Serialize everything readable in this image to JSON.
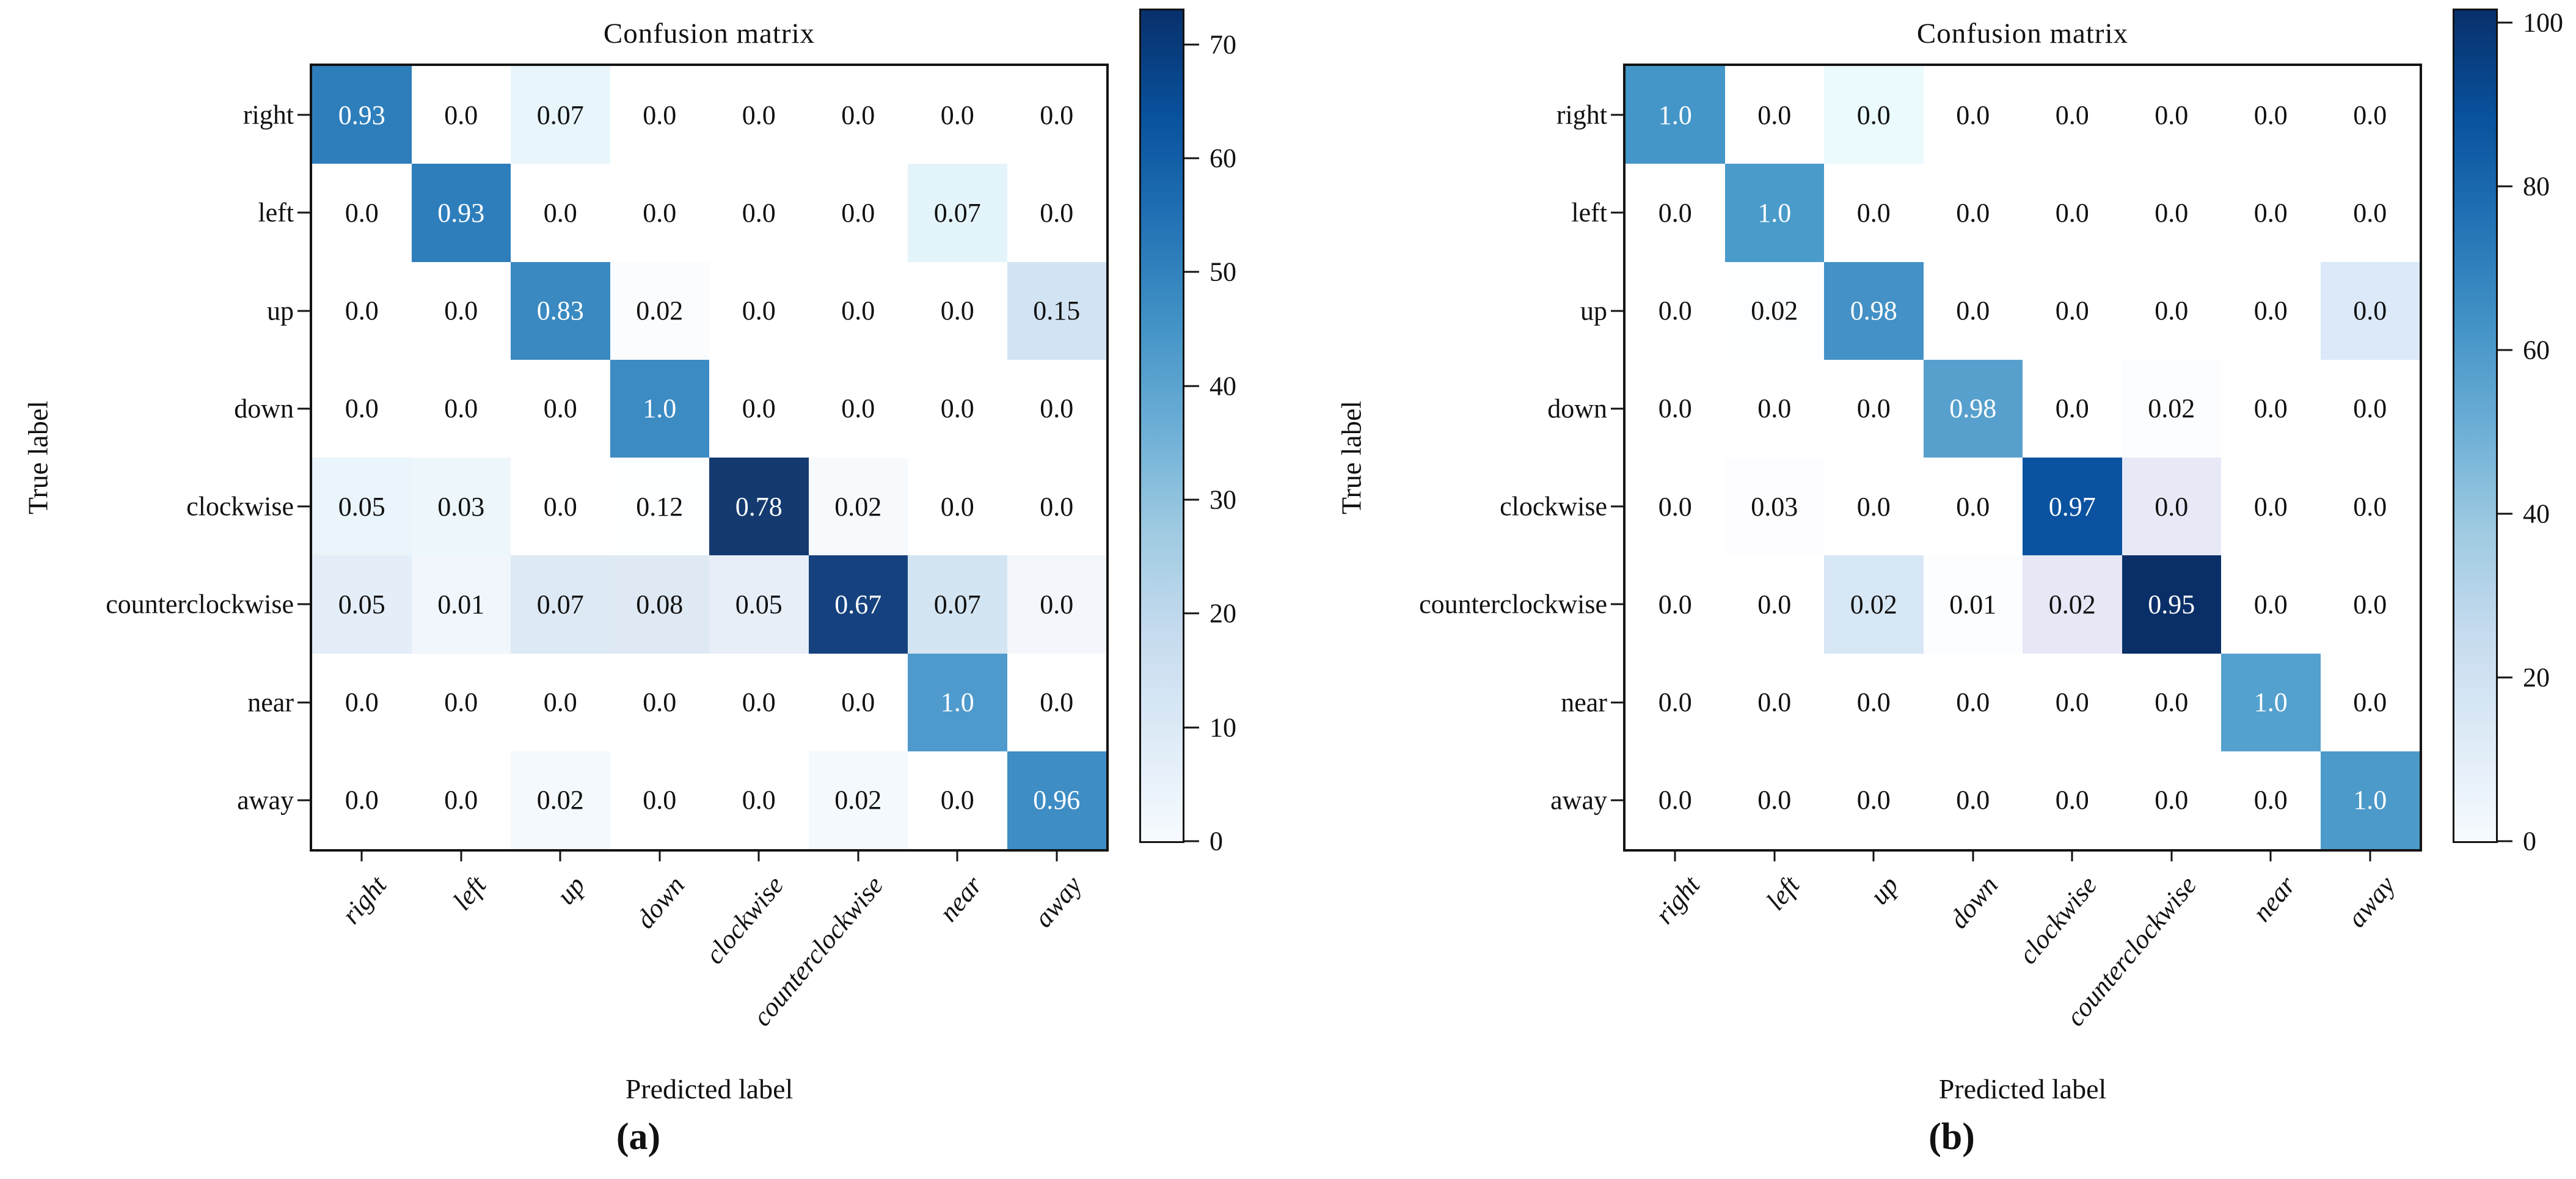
{
  "figure": {
    "background": "#ffffff"
  },
  "chart_data": [
    {
      "type": "heatmap",
      "panel_caption": "(a)",
      "title": "Confusion matrix",
      "xlabel": "Predicted label",
      "ylabel": "True label",
      "colormap": "Blues",
      "grid": false,
      "legend_position": "right-colorbar",
      "categories": [
        "right",
        "left",
        "up",
        "down",
        "clockwise",
        "counterclockwise",
        "near",
        "away"
      ],
      "matrix": [
        [
          0.93,
          0.0,
          0.07,
          0.0,
          0.0,
          0.0,
          0.0,
          0.0
        ],
        [
          0.0,
          0.93,
          0.0,
          0.0,
          0.0,
          0.0,
          0.07,
          0.0
        ],
        [
          0.0,
          0.0,
          0.83,
          0.02,
          0.0,
          0.0,
          0.0,
          0.15
        ],
        [
          0.0,
          0.0,
          0.0,
          1.0,
          0.0,
          0.0,
          0.0,
          0.0
        ],
        [
          0.05,
          0.03,
          0.0,
          0.12,
          0.78,
          0.02,
          0.0,
          0.0
        ],
        [
          0.05,
          0.01,
          0.07,
          0.08,
          0.05,
          0.67,
          0.07,
          0.0
        ],
        [
          0.0,
          0.0,
          0.0,
          0.0,
          0.0,
          0.0,
          1.0,
          0.0
        ],
        [
          0.0,
          0.0,
          0.02,
          0.0,
          0.0,
          0.02,
          0.0,
          0.96
        ]
      ],
      "cell_labels": [
        [
          "0.93",
          "0.0",
          "0.07",
          "0.0",
          "0.0",
          "0.0",
          "0.0",
          "0.0"
        ],
        [
          "0.0",
          "0.93",
          "0.0",
          "0.0",
          "0.0",
          "0.0",
          "0.07",
          "0.0"
        ],
        [
          "0.0",
          "0.0",
          "0.83",
          "0.02",
          "0.0",
          "0.0",
          "0.0",
          "0.15"
        ],
        [
          "0.0",
          "0.0",
          "0.0",
          "1.0",
          "0.0",
          "0.0",
          "0.0",
          "0.0"
        ],
        [
          "0.05",
          "0.03",
          "0.0",
          "0.12",
          "0.78",
          "0.02",
          "0.0",
          "0.0"
        ],
        [
          "0.05",
          "0.01",
          "0.07",
          "0.08",
          "0.05",
          "0.67",
          "0.07",
          "0.0"
        ],
        [
          "0.0",
          "0.0",
          "0.0",
          "0.0",
          "0.0",
          "0.0",
          "1.0",
          "0.0"
        ],
        [
          "0.0",
          "0.0",
          "0.02",
          "0.0",
          "0.0",
          "0.02",
          "0.0",
          "0.96"
        ]
      ],
      "cell_colors": [
        [
          "#2e7ebc",
          "#ffffff",
          "#e8f6fb",
          "#ffffff",
          "#ffffff",
          "#ffffff",
          "#ffffff",
          "#ffffff"
        ],
        [
          "#ffffff",
          "#2e7ebc",
          "#ffffff",
          "#ffffff",
          "#ffffff",
          "#ffffff",
          "#e4f4fb",
          "#ffffff"
        ],
        [
          "#ffffff",
          "#ffffff",
          "#3a89c1",
          "#fafcfe",
          "#ffffff",
          "#ffffff",
          "#ffffff",
          "#d2e4f3"
        ],
        [
          "#ffffff",
          "#ffffff",
          "#ffffff",
          "#3c8bc3",
          "#ffffff",
          "#ffffff",
          "#ffffff",
          "#ffffff"
        ],
        [
          "#e9f4fb",
          "#edf6fb",
          "#ffffff",
          "#fdfeff",
          "#143a70",
          "#f7fafd",
          "#ffffff",
          "#ffffff"
        ],
        [
          "#e4eef8",
          "#f0f6fb",
          "#dde9f4",
          "#dfe9f3",
          "#e7eef8",
          "#15417e",
          "#d3e4f2",
          "#f3f7fb"
        ],
        [
          "#ffffff",
          "#ffffff",
          "#ffffff",
          "#ffffff",
          "#ffffff",
          "#ffffff",
          "#4f9acd",
          "#ffffff"
        ],
        [
          "#ffffff",
          "#ffffff",
          "#f4f9fd",
          "#ffffff",
          "#ffffff",
          "#f4f9fd",
          "#ffffff",
          "#3e8dc5"
        ]
      ],
      "colorbar": {
        "vmin": 0,
        "vmax": 73,
        "ticks": [
          0,
          10,
          20,
          30,
          40,
          50,
          60,
          70
        ]
      }
    },
    {
      "type": "heatmap",
      "panel_caption": "(b)",
      "title": "Confusion matrix",
      "xlabel": "Predicted label",
      "ylabel": "True label",
      "colormap": "Blues",
      "grid": false,
      "legend_position": "right-colorbar",
      "categories": [
        "right",
        "left",
        "up",
        "down",
        "clockwise",
        "counterclockwise",
        "near",
        "away"
      ],
      "matrix": [
        [
          1.0,
          0.0,
          0.0,
          0.0,
          0.0,
          0.0,
          0.0,
          0.0
        ],
        [
          0.0,
          1.0,
          0.0,
          0.0,
          0.0,
          0.0,
          0.0,
          0.0
        ],
        [
          0.0,
          0.02,
          0.98,
          0.0,
          0.0,
          0.0,
          0.0,
          0.0
        ],
        [
          0.0,
          0.0,
          0.0,
          0.98,
          0.0,
          0.02,
          0.0,
          0.0
        ],
        [
          0.0,
          0.03,
          0.0,
          0.0,
          0.97,
          0.0,
          0.0,
          0.0
        ],
        [
          0.0,
          0.0,
          0.02,
          0.01,
          0.02,
          0.95,
          0.0,
          0.0
        ],
        [
          0.0,
          0.0,
          0.0,
          0.0,
          0.0,
          0.0,
          1.0,
          0.0
        ],
        [
          0.0,
          0.0,
          0.0,
          0.0,
          0.0,
          0.0,
          0.0,
          1.0
        ]
      ],
      "cell_labels": [
        [
          "1.0",
          "0.0",
          "0.0",
          "0.0",
          "0.0",
          "0.0",
          "0.0",
          "0.0"
        ],
        [
          "0.0",
          "1.0",
          "0.0",
          "0.0",
          "0.0",
          "0.0",
          "0.0",
          "0.0"
        ],
        [
          "0.0",
          "0.02",
          "0.98",
          "0.0",
          "0.0",
          "0.0",
          "0.0",
          "0.0"
        ],
        [
          "0.0",
          "0.0",
          "0.0",
          "0.98",
          "0.0",
          "0.02",
          "0.0",
          "0.0"
        ],
        [
          "0.0",
          "0.03",
          "0.0",
          "0.0",
          "0.97",
          "0.0",
          "0.0",
          "0.0"
        ],
        [
          "0.0",
          "0.0",
          "0.02",
          "0.01",
          "0.02",
          "0.95",
          "0.0",
          "0.0"
        ],
        [
          "0.0",
          "0.0",
          "0.0",
          "0.0",
          "0.0",
          "0.0",
          "1.0",
          "0.0"
        ],
        [
          "0.0",
          "0.0",
          "0.0",
          "0.0",
          "0.0",
          "0.0",
          "0.0",
          "1.0"
        ]
      ],
      "cell_colors": [
        [
          "#4496c8",
          "#ffffff",
          "#eafafd",
          "#ffffff",
          "#ffffff",
          "#ffffff",
          "#ffffff",
          "#ffffff"
        ],
        [
          "#ffffff",
          "#4a9bca",
          "#ffffff",
          "#ffffff",
          "#ffffff",
          "#ffffff",
          "#ffffff",
          "#ffffff"
        ],
        [
          "#ffffff",
          "#fdfeff",
          "#4391c6",
          "#ffffff",
          "#ffffff",
          "#ffffff",
          "#ffffff",
          "#dbe9f8"
        ],
        [
          "#ffffff",
          "#ffffff",
          "#ffffff",
          "#57a0cd",
          "#ffffff",
          "#fcfdff",
          "#ffffff",
          "#ffffff"
        ],
        [
          "#ffffff",
          "#fdfdff",
          "#ffffff",
          "#ffffff",
          "#0b52a0",
          "#e8e9f7",
          "#ffffff",
          "#ffffff"
        ],
        [
          "#ffffff",
          "#ffffff",
          "#d8e7f5",
          "#fcfdff",
          "#e7e7f6",
          "#0a2f68",
          "#ffffff",
          "#ffffff"
        ],
        [
          "#ffffff",
          "#ffffff",
          "#ffffff",
          "#ffffff",
          "#ffffff",
          "#ffffff",
          "#54a0ce",
          "#ffffff"
        ],
        [
          "#ffffff",
          "#ffffff",
          "#ffffff",
          "#ffffff",
          "#ffffff",
          "#ffffff",
          "#ffffff",
          "#4c9aca"
        ]
      ],
      "colorbar": {
        "vmin": 0,
        "vmax": 101.5,
        "ticks": [
          0,
          20,
          40,
          60,
          80,
          100
        ]
      }
    }
  ]
}
